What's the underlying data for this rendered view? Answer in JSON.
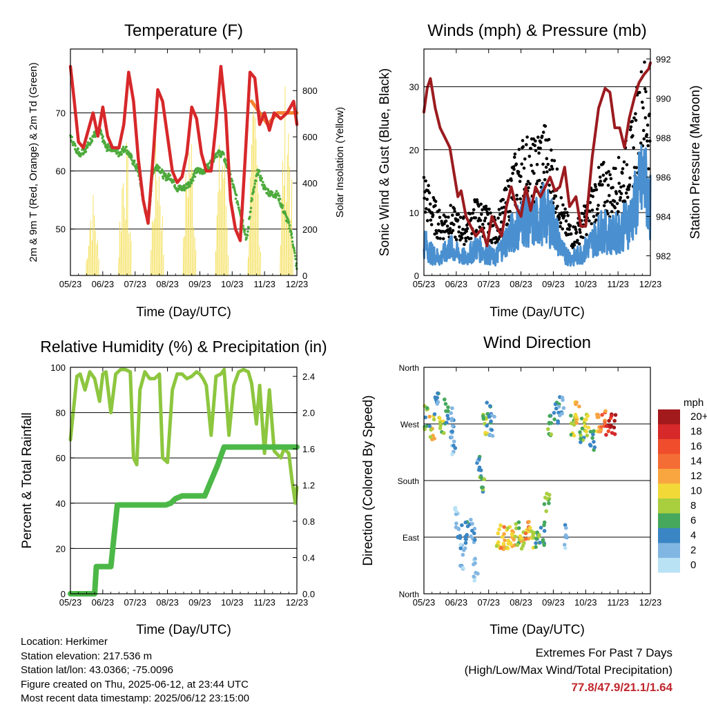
{
  "panels": {
    "temperature": {
      "title": "Temperature (F)",
      "xlabel": "Time (Day/UTC)",
      "ylabel": "2m & 9m T (Red, Orange) & 2m Td (Green)",
      "y2label": "Solar Insolation (Yellow)",
      "xticks": [
        "05/23",
        "06/23",
        "07/23",
        "08/23",
        "09/23",
        "10/23",
        "11/23",
        "12/23"
      ],
      "yticks": [
        "50",
        "60",
        "70"
      ],
      "y2ticks": [
        "0",
        "200",
        "400",
        "600",
        "800"
      ]
    },
    "wind": {
      "title": "Winds (mph) & Pressure (mb)",
      "xlabel": "Time (Day/UTC)",
      "ylabel": "Sonic Wind & Gust (Blue, Black)",
      "y2label": "Station Pressure (Maroon)",
      "xticks": [
        "05/23",
        "06/23",
        "07/23",
        "08/23",
        "09/23",
        "10/23",
        "11/23",
        "12/23"
      ],
      "yticks": [
        "0",
        "10",
        "20",
        "30"
      ],
      "y2ticks": [
        "982",
        "984",
        "986",
        "988",
        "990",
        "992"
      ]
    },
    "humidity": {
      "title": "Relative Humidity (%) & Precipitation (in)",
      "xlabel": "Time (Day/UTC)",
      "ylabel": "Percent & Total Rainfall",
      "xticks": [
        "05/23",
        "06/23",
        "07/23",
        "08/23",
        "09/23",
        "10/23",
        "11/23",
        "12/23"
      ],
      "yticks": [
        "0",
        "20",
        "40",
        "60",
        "80",
        "100"
      ],
      "y2ticks": [
        "0.0",
        "0.4",
        "0.8",
        "1.2",
        "1.6",
        "2.0",
        "2.4"
      ]
    },
    "direction": {
      "title": "Wind Direction",
      "xlabel": "Time (Day/UTC)",
      "ylabel": "Direction (Colored By Speed)",
      "xticks": [
        "05/23",
        "06/23",
        "07/23",
        "08/23",
        "09/23",
        "10/23",
        "11/23",
        "12/23"
      ],
      "yticks": [
        "North",
        "East",
        "South",
        "West",
        "North"
      ],
      "legend_title": "mph",
      "legend_labels": [
        "20+",
        "18",
        "16",
        "14",
        "12",
        "10",
        "8",
        "6",
        "4",
        "2",
        "0"
      ],
      "legend_colors": [
        "#a31a1c",
        "#d7282a",
        "#ef4d2c",
        "#f46d35",
        "#f9a640",
        "#f2d938",
        "#a9cf3f",
        "#45a85c",
        "#3a86c4",
        "#82b6e2",
        "#b9e2f5"
      ]
    }
  },
  "footer": {
    "location": "Location: Herkimer",
    "elevation": "Station elevation: 217.536 m",
    "latlon": "Station lat/lon: 43.0366; -75.0096",
    "created": "Figure created on Thu, 2025-06-12, at 23:44 UTC",
    "recent": "Most recent data timestamp: 2025/06/12 23:15:00"
  },
  "extremes": {
    "title": "Extremes For Past 7 Days",
    "subtitle": "(High/Low/Max Wind/Total Precipitation)",
    "values": "77.8/47.9/21.1/1.64"
  },
  "colors": {
    "temp2m": "#d7282a",
    "temp9m": "#f58231",
    "dewpoint": "#4daa3c",
    "solar": "#f2d938",
    "wind": "#4a90d0",
    "gust": "#000000",
    "pressure": "#9b1b1f",
    "rh": "#8dc63f",
    "precip": "#4cb847"
  },
  "chart_data": [
    {
      "type": "line",
      "title": "Temperature (F)",
      "xlabel": "Time (Day/UTC)",
      "ylabel": "2m & 9m T (Red, Orange) & 2m Td (Green)",
      "y2label": "Solar Insolation (Yellow)",
      "x_unit": "days since 05/23",
      "xlim": [
        0,
        7
      ],
      "ylim": [
        42,
        81
      ],
      "y2lim": [
        0,
        980
      ],
      "series": [
        {
          "name": "2m T",
          "axis": "left",
          "x": [
            0,
            0.12,
            0.25,
            0.4,
            0.55,
            0.7,
            0.85,
            1.0,
            1.15,
            1.3,
            1.5,
            1.65,
            1.8,
            1.95,
            2.1,
            2.25,
            2.4,
            2.55,
            2.7,
            2.85,
            3.0,
            3.15,
            3.3,
            3.45,
            3.6,
            3.75,
            3.9,
            4.05,
            4.2,
            4.35,
            4.5,
            4.65,
            4.8,
            4.95,
            5.1,
            5.25,
            5.4,
            5.55,
            5.7,
            5.85,
            6.0,
            6.15,
            6.3,
            6.5,
            6.7,
            6.9,
            7.0
          ],
          "y": [
            78,
            72,
            65,
            64,
            67,
            70,
            66,
            71,
            66,
            64,
            64,
            68,
            77,
            72,
            62,
            55,
            51,
            62,
            74,
            72,
            66,
            60,
            58,
            59,
            63,
            71,
            69,
            63,
            60,
            60,
            68,
            78,
            70,
            55,
            50,
            48,
            62,
            77,
            76,
            68,
            70,
            67,
            70,
            69,
            70,
            72,
            68
          ]
        },
        {
          "name": "9m T",
          "axis": "left",
          "x": [
            5.6,
            5.85,
            6.1,
            6.4,
            6.7,
            7.0
          ],
          "y": [
            72,
            70,
            68,
            70,
            70,
            70
          ]
        },
        {
          "name": "2m Td",
          "axis": "left",
          "x": [
            0,
            0.15,
            0.3,
            0.5,
            0.7,
            0.9,
            1.1,
            1.3,
            1.5,
            1.7,
            1.9,
            2.1,
            2.25,
            2.4,
            2.55,
            2.7,
            2.9,
            3.1,
            3.3,
            3.5,
            3.7,
            3.9,
            4.1,
            4.3,
            4.5,
            4.7,
            4.9,
            5.1,
            5.3,
            5.45,
            5.6,
            5.8,
            6.0,
            6.2,
            6.4,
            6.6,
            6.8,
            6.9,
            7.0
          ],
          "y": [
            66,
            64,
            63,
            64,
            66,
            67,
            64,
            64,
            63,
            64,
            62,
            60,
            55,
            51,
            60,
            61,
            59,
            59,
            57,
            57,
            58,
            60,
            60,
            61,
            63,
            63,
            60,
            56,
            52,
            48,
            55,
            60,
            57,
            56,
            56,
            53,
            50,
            47,
            43
          ]
        },
        {
          "name": "Solar Insolation",
          "axis": "right",
          "x": [
            0,
            0.3,
            0.5,
            0.7,
            0.9,
            1.1,
            1.3,
            1.6,
            1.9,
            2.2,
            2.5,
            2.8,
            3.1,
            3.4,
            3.7,
            4.0,
            4.3,
            4.6,
            4.9,
            5.2,
            5.5,
            5.8,
            6.1,
            6.4,
            6.6,
            6.8,
            7.0
          ],
          "y": [
            0,
            150,
            300,
            380,
            450,
            520,
            480,
            600,
            720,
            650,
            550,
            700,
            600,
            650,
            720,
            580,
            680,
            750,
            620,
            700,
            750,
            760,
            700,
            920,
            880,
            920,
            600
          ]
        }
      ]
    },
    {
      "type": "line",
      "title": "Winds (mph) & Pressure (mb)",
      "xlabel": "Time (Day/UTC)",
      "ylabel": "Sonic Wind & Gust (Blue, Black)",
      "y2label": "Station Pressure (Maroon)",
      "x_unit": "days since 05/23",
      "xlim": [
        0,
        7
      ],
      "ylim": [
        0,
        36
      ],
      "y2lim": [
        981,
        992.5
      ],
      "series": [
        {
          "name": "Sonic Wind",
          "axis": "left",
          "x": [
            0,
            0.2,
            0.5,
            0.8,
            1.0,
            1.3,
            1.6,
            1.9,
            2.2,
            2.5,
            2.8,
            3.1,
            3.4,
            3.7,
            4.0,
            4.3,
            4.6,
            4.9,
            5.2,
            5.5,
            5.8,
            6.1,
            6.4,
            6.6,
            6.8,
            7.0
          ],
          "y": [
            6,
            4,
            3,
            5,
            4,
            3,
            5,
            4,
            3,
            6,
            8,
            10,
            9,
            11,
            9,
            4,
            3,
            4,
            6,
            8,
            7,
            8,
            10,
            14,
            17,
            12
          ]
        },
        {
          "name": "Gust",
          "axis": "left",
          "x": [
            0,
            0.2,
            0.5,
            0.8,
            1.0,
            1.3,
            1.6,
            1.9,
            2.2,
            2.5,
            2.8,
            3.1,
            3.4,
            3.7,
            4.0,
            4.3,
            4.6,
            4.9,
            5.2,
            5.5,
            5.8,
            6.1,
            6.4,
            6.6,
            6.8,
            7.0
          ],
          "y": [
            15,
            12,
            9,
            10,
            9,
            8,
            11,
            10,
            8,
            12,
            17,
            20,
            19,
            22,
            18,
            10,
            7,
            9,
            13,
            16,
            15,
            17,
            21,
            27,
            31,
            25
          ]
        },
        {
          "name": "Station Pressure",
          "axis": "right",
          "x": [
            0,
            0.1,
            0.2,
            0.35,
            0.5,
            0.65,
            0.8,
            0.95,
            1.05,
            1.15,
            1.3,
            1.45,
            1.6,
            1.8,
            1.95,
            2.1,
            2.25,
            2.4,
            2.55,
            2.7,
            2.85,
            3.0,
            3.15,
            3.3,
            3.45,
            3.6,
            3.75,
            3.9,
            4.05,
            4.2,
            4.35,
            4.5,
            4.7,
            4.85,
            5.0,
            5.2,
            5.4,
            5.6,
            5.75,
            5.9,
            6.05,
            6.2,
            6.35,
            6.5,
            6.65,
            6.8,
            6.95,
            7.0
          ],
          "y": [
            989.3,
            990.5,
            991,
            989.5,
            988.5,
            988,
            987.5,
            986,
            985,
            985.3,
            984,
            983.5,
            983,
            983.4,
            982.5,
            984,
            983.5,
            983,
            984.5,
            985.5,
            984.5,
            984,
            985.5,
            984.3,
            985.5,
            985,
            985.5,
            986,
            985.3,
            985.5,
            986.5,
            984.5,
            985,
            983.5,
            983.5,
            987,
            989.5,
            990.5,
            990.3,
            988.5,
            988.5,
            987.5,
            989,
            990,
            990.8,
            991.2,
            991.5,
            991.8
          ]
        }
      ]
    },
    {
      "type": "line",
      "title": "Relative Humidity (%) & Precipitation (in)",
      "xlabel": "Time (Day/UTC)",
      "ylabel": "Percent & Total Rainfall",
      "x_unit": "days since 05/23",
      "xlim": [
        0,
        7
      ],
      "ylim": [
        0,
        100
      ],
      "y2lim": [
        0,
        2.5
      ],
      "series": [
        {
          "name": "Relative Humidity (%)",
          "axis": "left",
          "x": [
            0,
            0.1,
            0.2,
            0.3,
            0.45,
            0.6,
            0.75,
            0.9,
            1.0,
            1.1,
            1.25,
            1.4,
            1.55,
            1.7,
            1.85,
            1.95,
            2.05,
            2.15,
            2.3,
            2.45,
            2.6,
            2.75,
            2.85,
            3.0,
            3.15,
            3.3,
            3.45,
            3.6,
            3.75,
            3.9,
            4.0,
            4.1,
            4.2,
            4.35,
            4.5,
            4.65,
            4.75,
            4.9,
            5.05,
            5.2,
            5.35,
            5.5,
            5.6,
            5.75,
            5.85,
            6.0,
            6.15,
            6.3,
            6.5,
            6.6,
            6.75,
            6.85,
            6.95,
            7.0
          ],
          "y": [
            68,
            82,
            96,
            97,
            90,
            98,
            95,
            85,
            97,
            98,
            80,
            97,
            99,
            99,
            98,
            60,
            57,
            90,
            98,
            95,
            95,
            97,
            60,
            58,
            90,
            97,
            97,
            95,
            96,
            98,
            97,
            95,
            92,
            70,
            96,
            97,
            99,
            70,
            92,
            98,
            99,
            98,
            93,
            75,
            92,
            62,
            90,
            63,
            60,
            64,
            62,
            50,
            40,
            47
          ]
        },
        {
          "name": "Total Rainfall (in)",
          "axis": "right",
          "x": [
            0,
            0.3,
            0.75,
            0.8,
            1.1,
            1.25,
            1.45,
            1.7,
            1.95,
            2.2,
            2.45,
            2.7,
            2.95,
            3.1,
            3.25,
            3.45,
            3.7,
            3.95,
            4.15,
            4.35,
            4.55,
            4.75,
            4.9,
            5.1,
            5.4,
            6.0,
            6.5,
            7.0
          ],
          "y": [
            0,
            0,
            0,
            0.3,
            0.3,
            0.3,
            0.98,
            0.98,
            0.98,
            0.98,
            0.98,
            0.98,
            0.98,
            1.0,
            1.05,
            1.08,
            1.08,
            1.08,
            1.08,
            1.25,
            1.42,
            1.62,
            1.62,
            1.62,
            1.62,
            1.62,
            1.62,
            1.62
          ]
        }
      ]
    },
    {
      "type": "scatter",
      "title": "Wind Direction",
      "xlabel": "Time (Day/UTC)",
      "ylabel": "Direction (Colored By Speed)",
      "x_unit": "days since 05/23",
      "xlim": [
        0,
        7
      ],
      "y_unit": "degrees from North",
      "ylim": [
        0,
        360
      ],
      "color_by": "speed (mph)",
      "points": [
        {
          "x": 0.1,
          "y": 280,
          "s": 6
        },
        {
          "x": 0.25,
          "y": 265,
          "s": 10
        },
        {
          "x": 0.4,
          "y": 300,
          "s": 4
        },
        {
          "x": 0.55,
          "y": 270,
          "s": 8
        },
        {
          "x": 0.7,
          "y": 290,
          "s": 5
        },
        {
          "x": 0.85,
          "y": 275,
          "s": 3
        },
        {
          "x": 0.9,
          "y": 240,
          "s": 2
        },
        {
          "x": 1.0,
          "y": 120,
          "s": 2
        },
        {
          "x": 1.1,
          "y": 90,
          "s": 3
        },
        {
          "x": 1.2,
          "y": 60,
          "s": 2
        },
        {
          "x": 1.35,
          "y": 95,
          "s": 4
        },
        {
          "x": 1.5,
          "y": 100,
          "s": 2
        },
        {
          "x": 1.6,
          "y": 40,
          "s": 1
        },
        {
          "x": 1.7,
          "y": 200,
          "s": 4
        },
        {
          "x": 1.8,
          "y": 180,
          "s": 6
        },
        {
          "x": 1.9,
          "y": 270,
          "s": 8
        },
        {
          "x": 2.0,
          "y": 285,
          "s": 5
        },
        {
          "x": 2.1,
          "y": 270,
          "s": 3
        },
        {
          "x": 2.3,
          "y": 90,
          "s": 10
        },
        {
          "x": 2.45,
          "y": 88,
          "s": 12
        },
        {
          "x": 2.6,
          "y": 92,
          "s": 9
        },
        {
          "x": 2.75,
          "y": 85,
          "s": 11
        },
        {
          "x": 2.9,
          "y": 95,
          "s": 8
        },
        {
          "x": 3.05,
          "y": 90,
          "s": 10
        },
        {
          "x": 3.2,
          "y": 100,
          "s": 12
        },
        {
          "x": 3.35,
          "y": 92,
          "s": 9
        },
        {
          "x": 3.5,
          "y": 88,
          "s": 6
        },
        {
          "x": 3.65,
          "y": 95,
          "s": 4
        },
        {
          "x": 3.8,
          "y": 150,
          "s": 7
        },
        {
          "x": 3.9,
          "y": 270,
          "s": 6
        },
        {
          "x": 4.1,
          "y": 285,
          "s": 5
        },
        {
          "x": 4.25,
          "y": 300,
          "s": 3
        },
        {
          "x": 4.4,
          "y": 90,
          "s": 2
        },
        {
          "x": 4.6,
          "y": 270,
          "s": 8
        },
        {
          "x": 4.75,
          "y": 285,
          "s": 11
        },
        {
          "x": 4.9,
          "y": 260,
          "s": 6
        },
        {
          "x": 5.05,
          "y": 270,
          "s": 9
        },
        {
          "x": 5.2,
          "y": 240,
          "s": 4
        },
        {
          "x": 5.4,
          "y": 275,
          "s": 12
        },
        {
          "x": 5.55,
          "y": 280,
          "s": 14
        },
        {
          "x": 5.7,
          "y": 265,
          "s": 18
        },
        {
          "x": 5.85,
          "y": 272,
          "s": 20
        }
      ]
    }
  ]
}
